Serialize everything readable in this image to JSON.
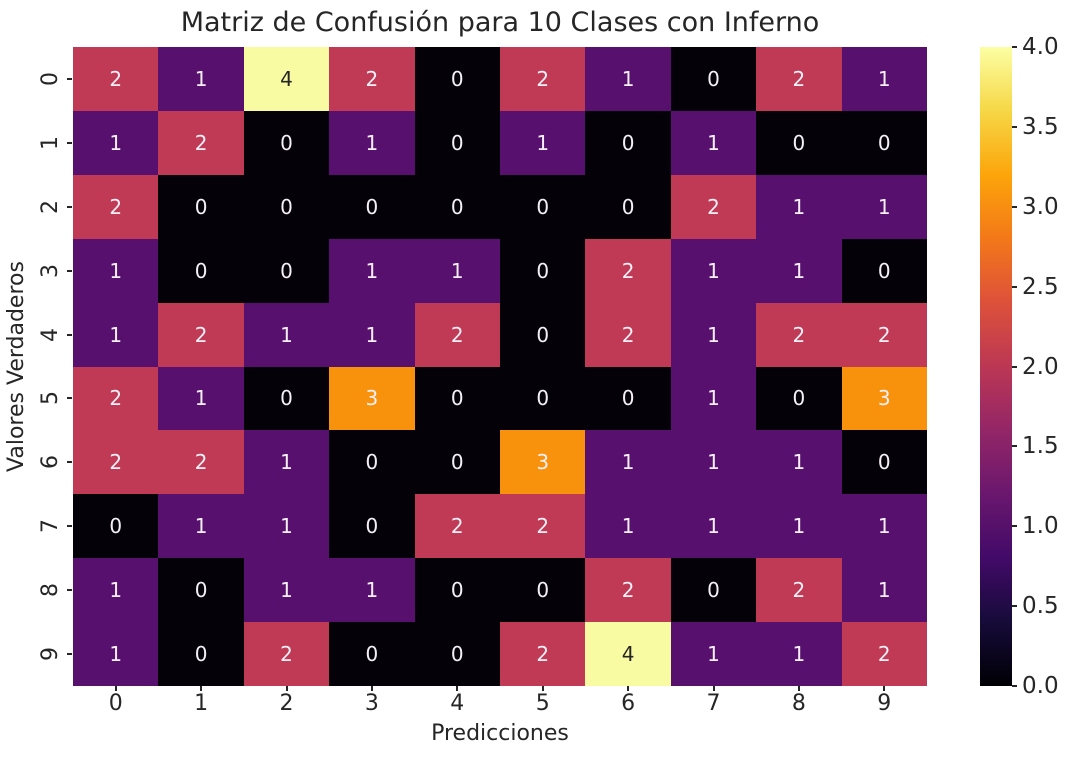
{
  "chart_data": {
    "type": "heatmap",
    "title": "Matriz de Confusión para 10 Clases con Inferno",
    "xlabel": "Predicciones",
    "ylabel": "Valores Verdaderos",
    "x_categories": [
      "0",
      "1",
      "2",
      "3",
      "4",
      "5",
      "6",
      "7",
      "8",
      "9"
    ],
    "y_categories": [
      "0",
      "1",
      "2",
      "3",
      "4",
      "5",
      "6",
      "7",
      "8",
      "9"
    ],
    "matrix": [
      [
        2,
        1,
        4,
        2,
        0,
        2,
        1,
        0,
        2,
        1
      ],
      [
        1,
        2,
        0,
        1,
        0,
        1,
        0,
        1,
        0,
        0
      ],
      [
        2,
        0,
        0,
        0,
        0,
        0,
        0,
        2,
        1,
        1
      ],
      [
        1,
        0,
        0,
        1,
        1,
        0,
        2,
        1,
        1,
        0
      ],
      [
        1,
        2,
        1,
        1,
        2,
        0,
        2,
        1,
        2,
        2
      ],
      [
        2,
        1,
        0,
        3,
        0,
        0,
        0,
        1,
        0,
        3
      ],
      [
        2,
        2,
        1,
        0,
        0,
        3,
        1,
        1,
        1,
        0
      ],
      [
        0,
        1,
        1,
        0,
        2,
        2,
        1,
        1,
        1,
        1
      ],
      [
        1,
        0,
        1,
        1,
        0,
        0,
        2,
        0,
        2,
        1
      ],
      [
        1,
        0,
        2,
        0,
        0,
        2,
        4,
        1,
        1,
        2
      ]
    ],
    "annotated": true,
    "colormap": "inferno",
    "vmin": 0,
    "vmax": 4,
    "grid": false,
    "colorbar": {
      "position": "right",
      "tick_values": [
        4.0,
        3.5,
        3.0,
        2.5,
        2.0,
        1.5,
        1.0,
        0.5,
        0.0
      ],
      "tick_labels": [
        "4.0",
        "3.5",
        "3.0",
        "2.5",
        "2.0",
        "1.5",
        "1.0",
        "0.5",
        "0.0"
      ]
    }
  },
  "colors": {
    "background": "#ffffff",
    "text": "#262626",
    "annotation_light": "#f5f0f7",
    "annotation_dark": "#262626",
    "dark_text_values": [
      4
    ],
    "value_colors": {
      "0": "#050108",
      "1": "#58106e",
      "2": "#c03a55",
      "3": "#f8910c",
      "4": "#f9fba3"
    },
    "inferno_stops": [
      "#000004",
      "#160b39",
      "#420a68",
      "#6a176e",
      "#932667",
      "#bc3754",
      "#dd513a",
      "#f37819",
      "#fca50a",
      "#f6d746",
      "#fcffa4"
    ]
  }
}
